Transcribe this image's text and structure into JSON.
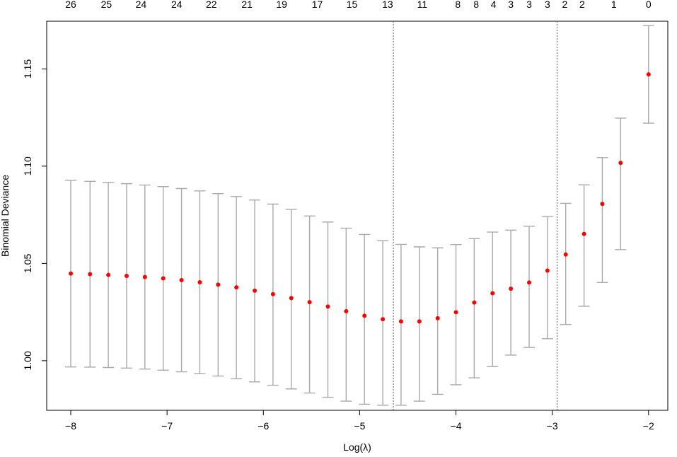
{
  "chart_data": {
    "type": "scatter",
    "xlabel": "Log(λ)",
    "ylabel": "Binomial Deviance",
    "xlim": [
      -8.25,
      -1.8
    ],
    "ylim": [
      0.9745,
      1.1745
    ],
    "x_ticks": [
      -8,
      -7,
      -6,
      -5,
      -4,
      -3,
      -2
    ],
    "x_tick_labels": [
      "−8",
      "−7",
      "−6",
      "−5",
      "−4",
      "−3",
      "−2"
    ],
    "y_ticks": [
      1.0,
      1.05,
      1.1,
      1.15
    ],
    "y_tick_labels": [
      "1.00",
      "1.05",
      "1.10",
      "1.15"
    ],
    "top_axis": {
      "positions": [
        -8.0,
        -7.8,
        -7.6,
        -7.4,
        -7.2,
        -7.0,
        -6.8,
        -6.6,
        -6.4,
        -6.2,
        -6.0,
        -5.8,
        -5.6,
        -5.4,
        -5.2,
        -5.0,
        -4.8,
        -4.6,
        -4.4,
        -4.2
      ],
      "labels": [
        "26",
        "25",
        "24",
        "24",
        "22",
        "21",
        "19",
        "17",
        "15",
        "13",
        "11",
        "8",
        "8",
        "4",
        "3",
        "3",
        "3",
        "2",
        "2",
        "2"
      ]
    },
    "top_labels": {
      "x": [
        -8.0,
        -7.63,
        -7.27,
        -6.9,
        -6.54,
        -6.17,
        -5.81,
        -5.44,
        -5.08,
        -4.71,
        -4.35,
        -3.98,
        -3.79,
        -3.61,
        -3.43,
        -3.24,
        -3.05,
        -2.87,
        -2.69,
        -2.36,
        -2.0
      ],
      "labels": [
        "26",
        "25",
        "24",
        "24",
        "22",
        "21",
        "19",
        "17",
        "15",
        "13",
        "11",
        "8",
        "8",
        "4",
        "3",
        "3",
        "3",
        "2",
        "2",
        "1",
        "0"
      ]
    },
    "series": [
      {
        "x": [
          -8.0,
          -7.8,
          -7.61,
          -7.42,
          -7.23,
          -7.04,
          -6.85,
          -6.66,
          -6.47,
          -6.28,
          -6.09,
          -5.9,
          -5.71,
          -5.52,
          -5.33,
          -5.14,
          -4.95,
          -4.76,
          -4.57,
          -4.38,
          -4.19,
          -4.0,
          -3.81,
          -3.62,
          -3.43,
          -3.24,
          -3.05,
          -2.86,
          -2.67,
          -2.48,
          -2.29,
          -2.0
        ],
        "y": [
          1.0448,
          1.0445,
          1.0441,
          1.0436,
          1.043,
          1.0423,
          1.0414,
          1.0403,
          1.0391,
          1.0377,
          1.036,
          1.0342,
          1.0322,
          1.0301,
          1.0278,
          1.0254,
          1.0231,
          1.0213,
          1.0202,
          1.0202,
          1.0218,
          1.0249,
          1.0299,
          1.0347,
          1.037,
          1.0402,
          1.0463,
          1.0546,
          1.0652,
          1.0806,
          1.1017,
          1.1472
        ],
        "lower": [
          0.9968,
          0.9967,
          0.9965,
          0.9962,
          0.9957,
          0.9951,
          0.9943,
          0.9933,
          0.9921,
          0.9907,
          0.9891,
          0.9874,
          0.9855,
          0.9834,
          0.9812,
          0.9792,
          0.9776,
          0.9771,
          0.9771,
          0.9792,
          0.9827,
          0.9876,
          0.9912,
          0.997,
          1.0029,
          1.0068,
          1.0113,
          1.0186,
          1.028,
          1.0402,
          1.0571,
          1.1221
        ],
        "upper": [
          1.0927,
          1.0922,
          1.0916,
          1.091,
          1.0903,
          1.0895,
          1.0885,
          1.0873,
          1.0859,
          1.0844,
          1.0826,
          1.0805,
          1.0778,
          1.0744,
          1.0713,
          1.0681,
          1.0649,
          1.0617,
          1.0598,
          1.0585,
          1.058,
          1.0597,
          1.0628,
          1.0661,
          1.0671,
          1.0691,
          1.0741,
          1.0809,
          1.0904,
          1.1044,
          1.1247,
          1.1723
        ]
      }
    ],
    "vlines": [
      -4.65,
      -2.95
    ],
    "colors": {
      "point": "#ff0000",
      "errorbar": "#aaaaaa",
      "vline": "#555555",
      "axis": "#000000"
    },
    "grid": false
  }
}
